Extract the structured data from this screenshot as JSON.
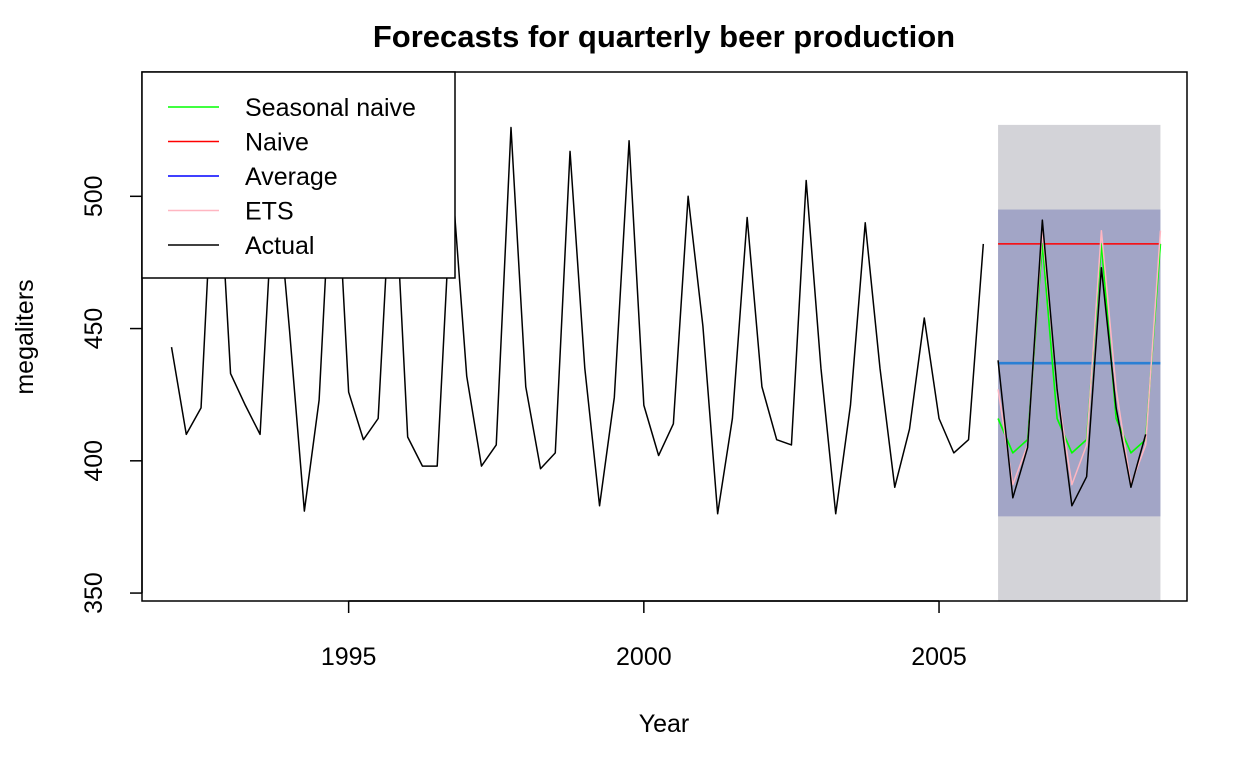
{
  "chart_data": {
    "type": "line",
    "title": "Forecasts for quarterly beer production",
    "xlabel": "Year",
    "ylabel": "megaliters",
    "xlim": [
      1991.5,
      2009.2
    ],
    "ylim": [
      347,
      547
    ],
    "x_ticks": [
      1995,
      2000,
      2005
    ],
    "y_ticks": [
      350,
      400,
      450,
      500
    ],
    "legend_position": "top-left",
    "grid": false,
    "actual": {
      "name": "Actual",
      "color": "#000000",
      "start": 1992.0,
      "frequency": 4,
      "values": [
        443,
        410,
        420,
        532,
        433,
        421,
        410,
        512,
        449,
        381,
        423,
        531,
        426,
        408,
        416,
        520,
        409,
        398,
        398,
        507,
        432,
        398,
        406,
        526,
        428,
        397,
        403,
        517,
        435,
        383,
        424,
        521,
        421,
        402,
        414,
        500,
        451,
        380,
        416,
        492,
        428,
        408,
        406,
        506,
        435,
        380,
        421,
        490,
        435,
        390,
        412,
        454,
        416,
        403,
        408,
        482
      ]
    },
    "test_actual": {
      "name": "Actual",
      "color": "#000000",
      "start": 2006.0,
      "frequency": 4,
      "values": [
        438,
        386,
        405,
        491,
        427,
        383,
        394,
        473,
        420,
        390,
        410
      ]
    },
    "forecasts": [
      {
        "name": "Seasonal naive",
        "color": "#00ff00",
        "start": 2006.0,
        "frequency": 4,
        "values": [
          416,
          403,
          408,
          482,
          416,
          403,
          408,
          482,
          416,
          403,
          408,
          482
        ]
      },
      {
        "name": "Naive",
        "color": "#ff0000",
        "start": 2006.0,
        "frequency": 4,
        "values": [
          482,
          482,
          482,
          482,
          482,
          482,
          482,
          482,
          482,
          482,
          482,
          482
        ]
      },
      {
        "name": "Average",
        "color": "#0000ff",
        "start": 2006.0,
        "frequency": 4,
        "values": [
          436.9,
          436.9,
          436.9,
          436.9,
          436.9,
          436.9,
          436.9,
          436.9,
          436.9,
          436.9,
          436.9,
          436.9
        ]
      },
      {
        "name": "ETS",
        "color": "#ffb6c1",
        "start": 2006.0,
        "frequency": 4,
        "values": [
          427,
          391,
          406,
          487,
          427,
          391,
          406,
          487,
          427,
          391,
          406,
          487
        ]
      }
    ],
    "prediction_intervals": {
      "x_start": 2006.0,
      "x_end": 2008.75,
      "outer": [
        347,
        527
      ],
      "inner": [
        379,
        495
      ],
      "outer_color": "#d3d3d8",
      "inner_color": "#a2a5c6"
    },
    "legend": [
      {
        "label": "Seasonal naive",
        "color": "#00ff00"
      },
      {
        "label": "Naive",
        "color": "#ff0000"
      },
      {
        "label": "Average",
        "color": "#0000ff"
      },
      {
        "label": "ETS",
        "color": "#ffb6c1"
      },
      {
        "label": "Actual",
        "color": "#000000"
      }
    ]
  }
}
